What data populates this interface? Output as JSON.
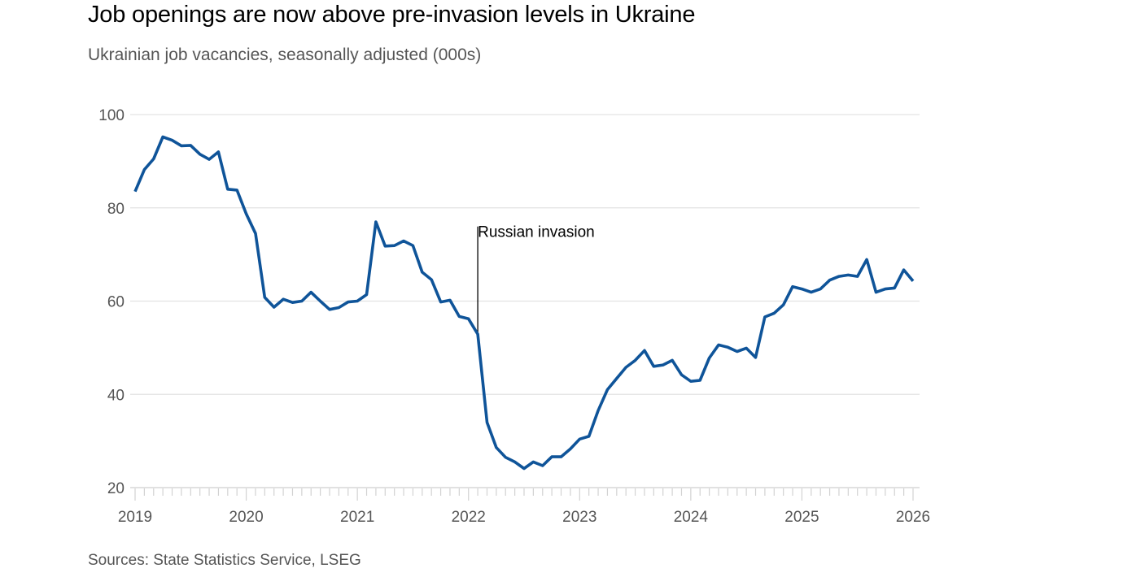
{
  "chart_data": {
    "type": "line",
    "title": "Job openings are now above pre-invasion levels in Ukraine",
    "subtitle": "Ukrainian job vacancies, seasonally adjusted (000s)",
    "source": "Sources: State Statistics Service, LSEG",
    "xlabel": "",
    "ylabel": "",
    "ylim": [
      20,
      100
    ],
    "yticks": [
      20,
      40,
      60,
      80,
      100
    ],
    "xlim": [
      "2019-01",
      "2026-01"
    ],
    "xticks": [
      "2019",
      "2020",
      "2021",
      "2022",
      "2023",
      "2024",
      "2025",
      "2026"
    ],
    "grid": true,
    "line_color": "#0f5499",
    "annotation": {
      "label": "Russian invasion",
      "x": "2022-02",
      "top_value": 76
    },
    "series": [
      {
        "name": "Job vacancies (000s)",
        "start": "2019-01",
        "frequency": "monthly",
        "values": [
          83.5,
          88.2,
          90.5,
          95.2,
          94.5,
          93.3,
          93.4,
          91.5,
          90.4,
          92.0,
          84.0,
          83.8,
          78.7,
          74.5,
          60.8,
          58.7,
          60.4,
          59.7,
          60.0,
          61.9,
          60.0,
          58.2,
          58.6,
          59.8,
          60.0,
          61.4,
          77.0,
          71.8,
          71.9,
          72.9,
          71.9,
          66.2,
          64.6,
          59.8,
          60.2,
          56.7,
          56.2,
          52.9,
          34.0,
          28.6,
          26.5,
          25.5,
          24.1,
          25.5,
          24.7,
          26.6,
          26.6,
          28.3,
          30.4,
          31.0,
          36.5,
          41.0,
          43.4,
          45.8,
          47.3,
          49.4,
          46.0,
          46.3,
          47.3,
          44.2,
          42.8,
          43.0,
          47.8,
          50.6,
          50.1,
          49.2,
          49.9,
          47.9,
          56.6,
          57.4,
          59.2,
          63.1,
          62.6,
          61.9,
          62.6,
          64.5,
          65.3,
          65.6,
          65.3,
          68.9,
          61.9,
          62.6,
          62.8,
          66.7,
          64.3
        ]
      }
    ]
  }
}
